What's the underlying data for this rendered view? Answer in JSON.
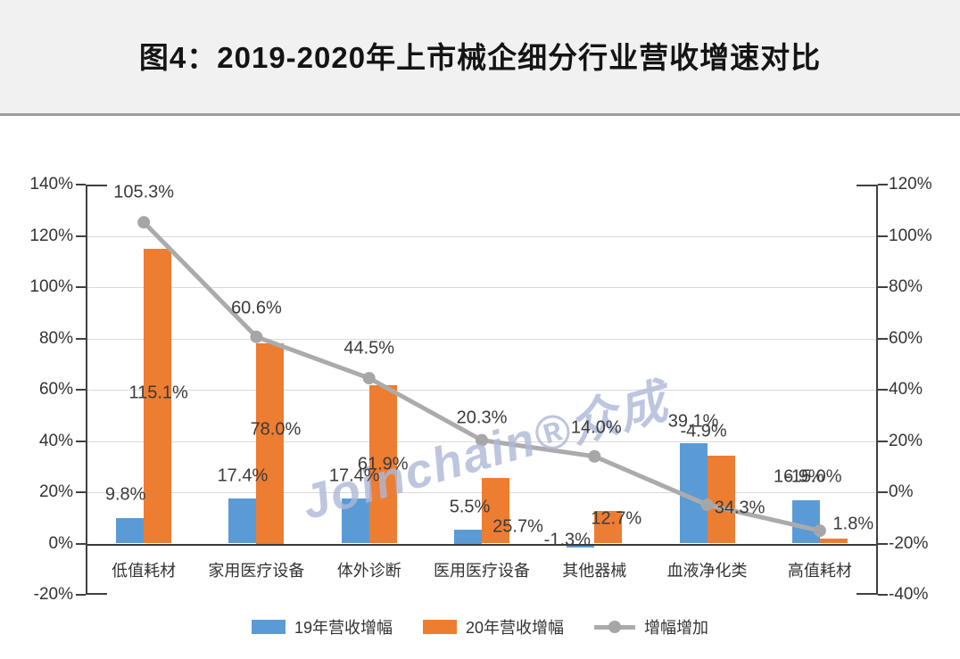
{
  "title": "图4：2019-2020年上市械企细分行业营收增速对比",
  "watermark": "Joinchain®众成",
  "colors": {
    "bar_2019": "#5B9BD5",
    "bar_2020": "#ED7D31",
    "line": "#ABABAB",
    "line_marker": "#A6A6A6",
    "grid": "#D9D9D9",
    "axis": "#404040",
    "title_band": "#F1F1F1"
  },
  "chart_data": {
    "type": "bar",
    "subtype": "grouped bars + line on secondary axis",
    "title": "图4：2019-2020年上市械企细分行业营收增速对比",
    "categories": [
      "低值耗材",
      "家用医疗设备",
      "体外诊断",
      "医用医疗设备",
      "其他器械",
      "血液净化类",
      "高值耗材"
    ],
    "series": [
      {
        "name": "19年营收增幅",
        "type": "bar",
        "axis": "left",
        "color": "#5B9BD5",
        "values": [
          9.8,
          17.4,
          17.4,
          5.5,
          -1.3,
          39.1,
          16.9
        ],
        "labels": [
          "9.8%",
          "17.4%",
          "17.4%",
          "5.5%",
          "-1.3%",
          "39.1%",
          "16.9%"
        ]
      },
      {
        "name": "20年营收增幅",
        "type": "bar",
        "axis": "left",
        "color": "#ED7D31",
        "values": [
          115.1,
          78.0,
          61.9,
          25.7,
          12.7,
          34.3,
          1.8
        ],
        "labels": [
          "115.1%",
          "78.0%",
          "61.9%",
          "25.7%",
          "12.7%",
          "34.3%",
          "1.8%"
        ]
      },
      {
        "name": "增幅增加",
        "type": "line",
        "axis": "right",
        "color": "#ABABAB",
        "values": [
          105.3,
          60.6,
          44.5,
          20.3,
          14.0,
          -4.9,
          -15.0
        ],
        "labels": [
          "105.3%",
          "60.6%",
          "44.5%",
          "20.3%",
          "14.0%",
          "-4.9%",
          "-15.0%"
        ]
      }
    ],
    "left_axis": {
      "min": -20,
      "max": 140,
      "step": 20,
      "ticks": [
        "140%",
        "120%",
        "100%",
        "80%",
        "60%",
        "40%",
        "20%",
        "0%",
        "-20%"
      ]
    },
    "right_axis": {
      "min": -40,
      "max": 120,
      "step": 20,
      "ticks": [
        "120%",
        "100%",
        "80%",
        "60%",
        "40%",
        "20%",
        "0%",
        "-20%",
        "-40%"
      ]
    },
    "grid": true,
    "legend_position": "bottom",
    "legend": [
      "19年营收增幅",
      "20年营收增幅",
      "增幅增加"
    ]
  }
}
